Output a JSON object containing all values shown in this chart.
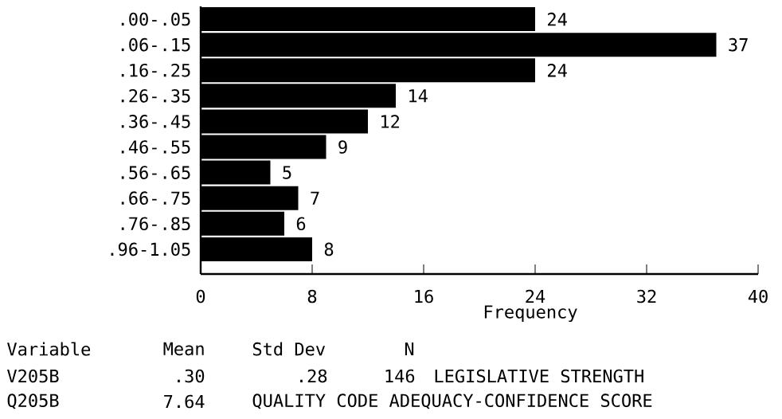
{
  "chart_data": {
    "type": "bar",
    "orientation": "horizontal",
    "categories": [
      ".00-.05",
      ".06-.15",
      ".16-.25",
      ".26-.35",
      ".36-.45",
      ".46-.55",
      ".56-.65",
      ".66-.75",
      ".76-.85",
      ".96-1.05"
    ],
    "values": [
      24,
      37,
      24,
      14,
      12,
      9,
      5,
      7,
      6,
      8
    ],
    "color": "#000000",
    "data_labels": true,
    "grid": false,
    "xlim": [
      0,
      40
    ],
    "xticks": [
      0,
      8,
      16,
      24,
      32,
      40
    ],
    "xlabel": "Frequency",
    "annotations": [
      "Variable",
      "Mean",
      "Std Dev",
      "N",
      "V205B",
      ".30",
      ".28",
      "146",
      "LEGISLATIVE STRENGTH",
      "Q205B",
      "7.64",
      "QUALITY CODE ADEQUACY-CONFIDENCE SCORE"
    ]
  }
}
